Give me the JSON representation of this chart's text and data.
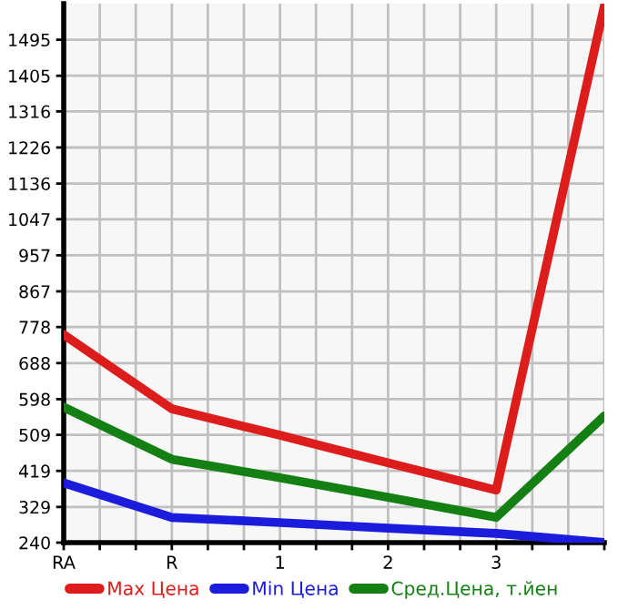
{
  "chart_data": {
    "type": "line",
    "categories": [
      "RA",
      "R",
      "1",
      "2",
      "3",
      null
    ],
    "series": [
      {
        "name": "Max Цена",
        "color": "#dd1c1c",
        "values": [
          759,
          574,
          508,
          439,
          371,
          1580
        ]
      },
      {
        "name": "Min Цена",
        "color": "#1c1cdd",
        "values": [
          389,
          303,
          290,
          276,
          263,
          240
        ]
      },
      {
        "name": "Сред.Цена, т.йен",
        "color": "#148014",
        "values": [
          578,
          448,
          402,
          353,
          303,
          556
        ]
      }
    ],
    "ylim": [
      240,
      1585
    ],
    "yticks": [
      240,
      329,
      419,
      509,
      598,
      688,
      778,
      867,
      957,
      1047,
      1136,
      1226,
      1316,
      1405,
      1495
    ],
    "grid": true,
    "legend": "bottom",
    "marker": "none",
    "line_style": "solid"
  }
}
